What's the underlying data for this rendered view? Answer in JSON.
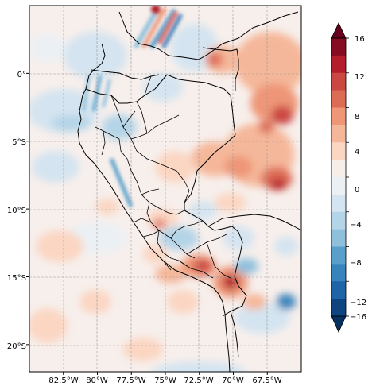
{
  "map": {
    "lon_range": [
      -85.0,
      -65.0
    ],
    "lat_range": [
      -22.0,
      5.0
    ],
    "x_ticks": [
      {
        "value": -82.5,
        "label": "82.5°W"
      },
      {
        "value": -80.0,
        "label": "80°W"
      },
      {
        "value": -77.5,
        "label": "77.5°W"
      },
      {
        "value": -75.0,
        "label": "75°W"
      },
      {
        "value": -72.5,
        "label": "72.5°W"
      },
      {
        "value": -70.0,
        "label": "70°W"
      },
      {
        "value": -67.5,
        "label": "67.5°W"
      }
    ],
    "y_ticks": [
      {
        "value": 0,
        "label": "0°"
      },
      {
        "value": -5,
        "label": "5°S"
      },
      {
        "value": -10,
        "label": "10°S"
      },
      {
        "value": -15,
        "label": "15°S"
      },
      {
        "value": -20,
        "label": "20°S"
      }
    ],
    "gridlines": true,
    "colormap": "RdBu_r"
  },
  "colorbar": {
    "extend": "both",
    "ticks": [
      {
        "value": 16,
        "label": "16"
      },
      {
        "value": 12,
        "label": "12"
      },
      {
        "value": 8,
        "label": "8"
      },
      {
        "value": 4,
        "label": "4"
      },
      {
        "value": 0,
        "label": "0"
      },
      {
        "value": -4,
        "label": "−4"
      },
      {
        "value": -8,
        "label": "−8"
      },
      {
        "value": -12,
        "label": "−12"
      },
      {
        "value": -16,
        "label": "−16"
      }
    ],
    "levels": [
      {
        "from": 14,
        "to": 16,
        "color": "#850c23"
      },
      {
        "from": 12,
        "to": 14,
        "color": "#b41d2c"
      },
      {
        "from": 10,
        "to": 12,
        "color": "#cb4742"
      },
      {
        "from": 8,
        "to": 10,
        "color": "#dd6c57"
      },
      {
        "from": 6,
        "to": 8,
        "color": "#ee9677"
      },
      {
        "from": 4,
        "to": 6,
        "color": "#f5b79a"
      },
      {
        "from": 2,
        "to": 4,
        "color": "#fbd6c2"
      },
      {
        "from": 0,
        "to": 2,
        "color": "#f6eee9"
      },
      {
        "from": -2,
        "to": 0,
        "color": "#ebf0f4"
      },
      {
        "from": -4,
        "to": -2,
        "color": "#d4e4f0"
      },
      {
        "from": -6,
        "to": -4,
        "color": "#b4d4e7"
      },
      {
        "from": -8,
        "to": -6,
        "color": "#8ec0db"
      },
      {
        "from": -10,
        "to": -8,
        "color": "#58a0ca"
      },
      {
        "from": -12,
        "to": -10,
        "color": "#3783bb"
      },
      {
        "from": -14,
        "to": -12,
        "color": "#1e64a6"
      },
      {
        "from": -16,
        "to": -14,
        "color": "#0e4581"
      }
    ],
    "over_color": "#67001f",
    "under_color": "#053061"
  }
}
